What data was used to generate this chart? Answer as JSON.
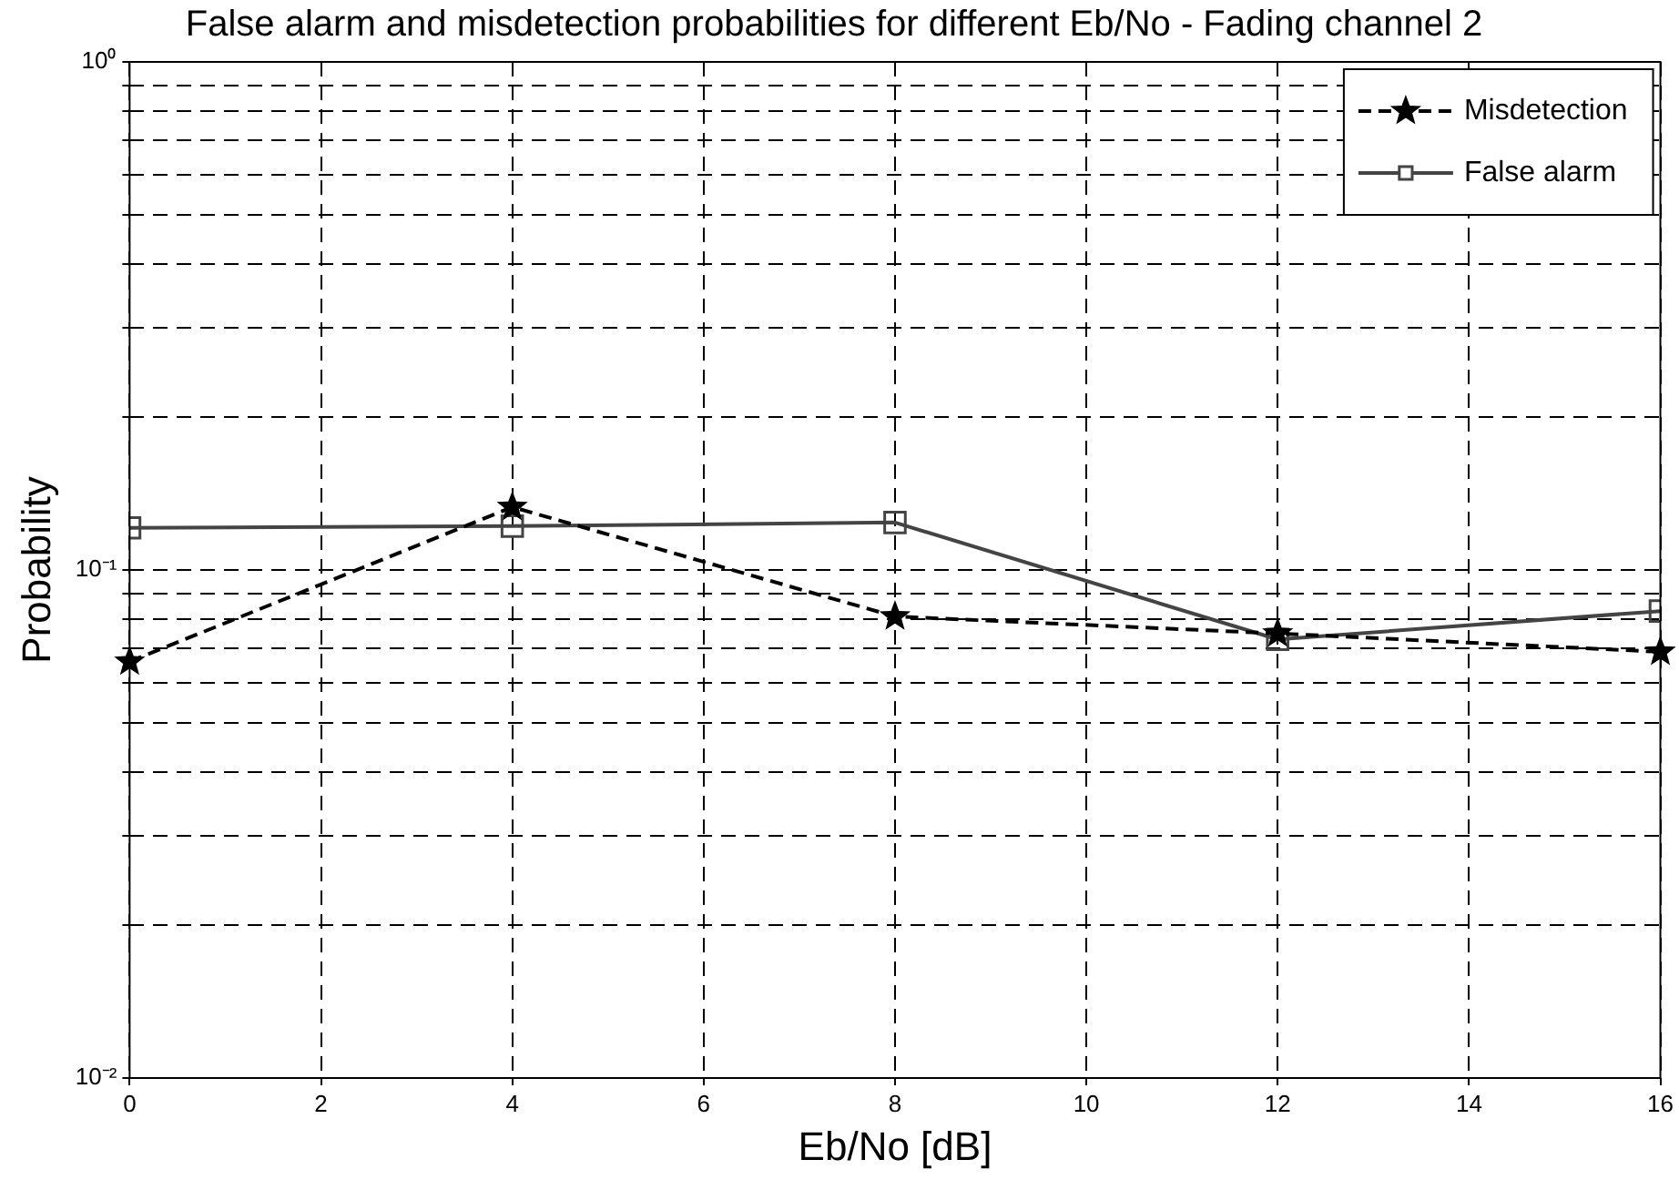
{
  "chart_data": {
    "type": "line",
    "title": "False alarm and misdetection probabilities for different Eb/No - Fading channel 2",
    "xlabel": "Eb/No [dB]",
    "ylabel": "Probability",
    "x": [
      0,
      4,
      8,
      12,
      16
    ],
    "series": [
      {
        "name": "Misdetection",
        "color": "#000000",
        "values": [
          0.066,
          0.133,
          0.081,
          0.075,
          0.069
        ],
        "marker": "star",
        "line_style": "dashed"
      },
      {
        "name": "False alarm",
        "color": "#444444",
        "values": [
          0.121,
          0.122,
          0.124,
          0.073,
          0.083
        ],
        "marker": "square",
        "line_style": "solid"
      }
    ],
    "xlim": [
      0,
      16
    ],
    "xticks": [
      0,
      2,
      4,
      6,
      8,
      10,
      12,
      14,
      16
    ],
    "ylim": [
      0.01,
      1
    ],
    "log": true,
    "yticks": [
      {
        "value": 0.01,
        "label": "10⁻²"
      },
      {
        "value": 0.02,
        "label": null
      },
      {
        "value": 0.03,
        "label": null
      },
      {
        "value": 0.04,
        "label": null
      },
      {
        "value": 0.05,
        "label": null
      },
      {
        "value": 0.06,
        "label": null
      },
      {
        "value": 0.07,
        "label": null
      },
      {
        "value": 0.08,
        "label": null
      },
      {
        "value": 0.09,
        "label": null
      },
      {
        "value": 0.1,
        "label": "10⁻¹"
      },
      {
        "value": 0.2,
        "label": null
      },
      {
        "value": 0.3,
        "label": null
      },
      {
        "value": 0.4,
        "label": null
      },
      {
        "value": 0.5,
        "label": null
      },
      {
        "value": 0.6,
        "label": null
      },
      {
        "value": 0.7,
        "label": null
      },
      {
        "value": 0.8,
        "label": null
      },
      {
        "value": 0.9,
        "label": null
      },
      {
        "value": 1,
        "label": "10⁰"
      }
    ],
    "grid": true,
    "legend": "top right"
  }
}
